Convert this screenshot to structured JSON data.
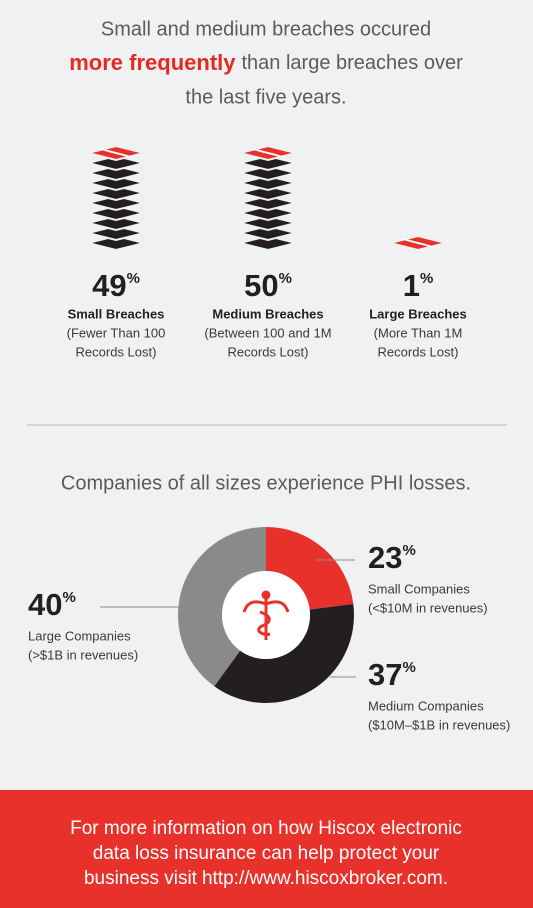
{
  "headline": {
    "line1": "Small and medium breaches occured",
    "emphasis": "more frequently",
    "line2_rest": "than large breaches over",
    "line3": "the last five years."
  },
  "unit": "%",
  "breaches": [
    {
      "value": 49,
      "label": "Small Breaches",
      "detail": [
        "(Fewer Than 100",
        "Records Lost)"
      ]
    },
    {
      "value": 50,
      "label": "Medium Breaches",
      "detail": [
        "(Between 100 and 1M",
        "Records Lost)"
      ]
    },
    {
      "value": 1,
      "label": "Large Breaches",
      "detail": [
        "(More Than 1M",
        "Records Lost)"
      ]
    }
  ],
  "chart_data": {
    "type": "pie",
    "title": "Companies of all sizes experience PHI losses.",
    "categories": [
      "Small Companies",
      "Medium Companies",
      "Large Companies"
    ],
    "descriptions": [
      "(<$10M in revenues)",
      "($10M–$1B in revenues)",
      "(>$1B in revenues)"
    ],
    "values": [
      23,
      37,
      40
    ],
    "colors": [
      "#e8312a",
      "#231f20",
      "#8a8a8a"
    ]
  },
  "footer": {
    "lines": [
      "For more information on how Hiscox electronic",
      "data loss insurance can help protect your",
      "business visit"
    ],
    "link": "http://www.hiscoxbroker.com."
  }
}
